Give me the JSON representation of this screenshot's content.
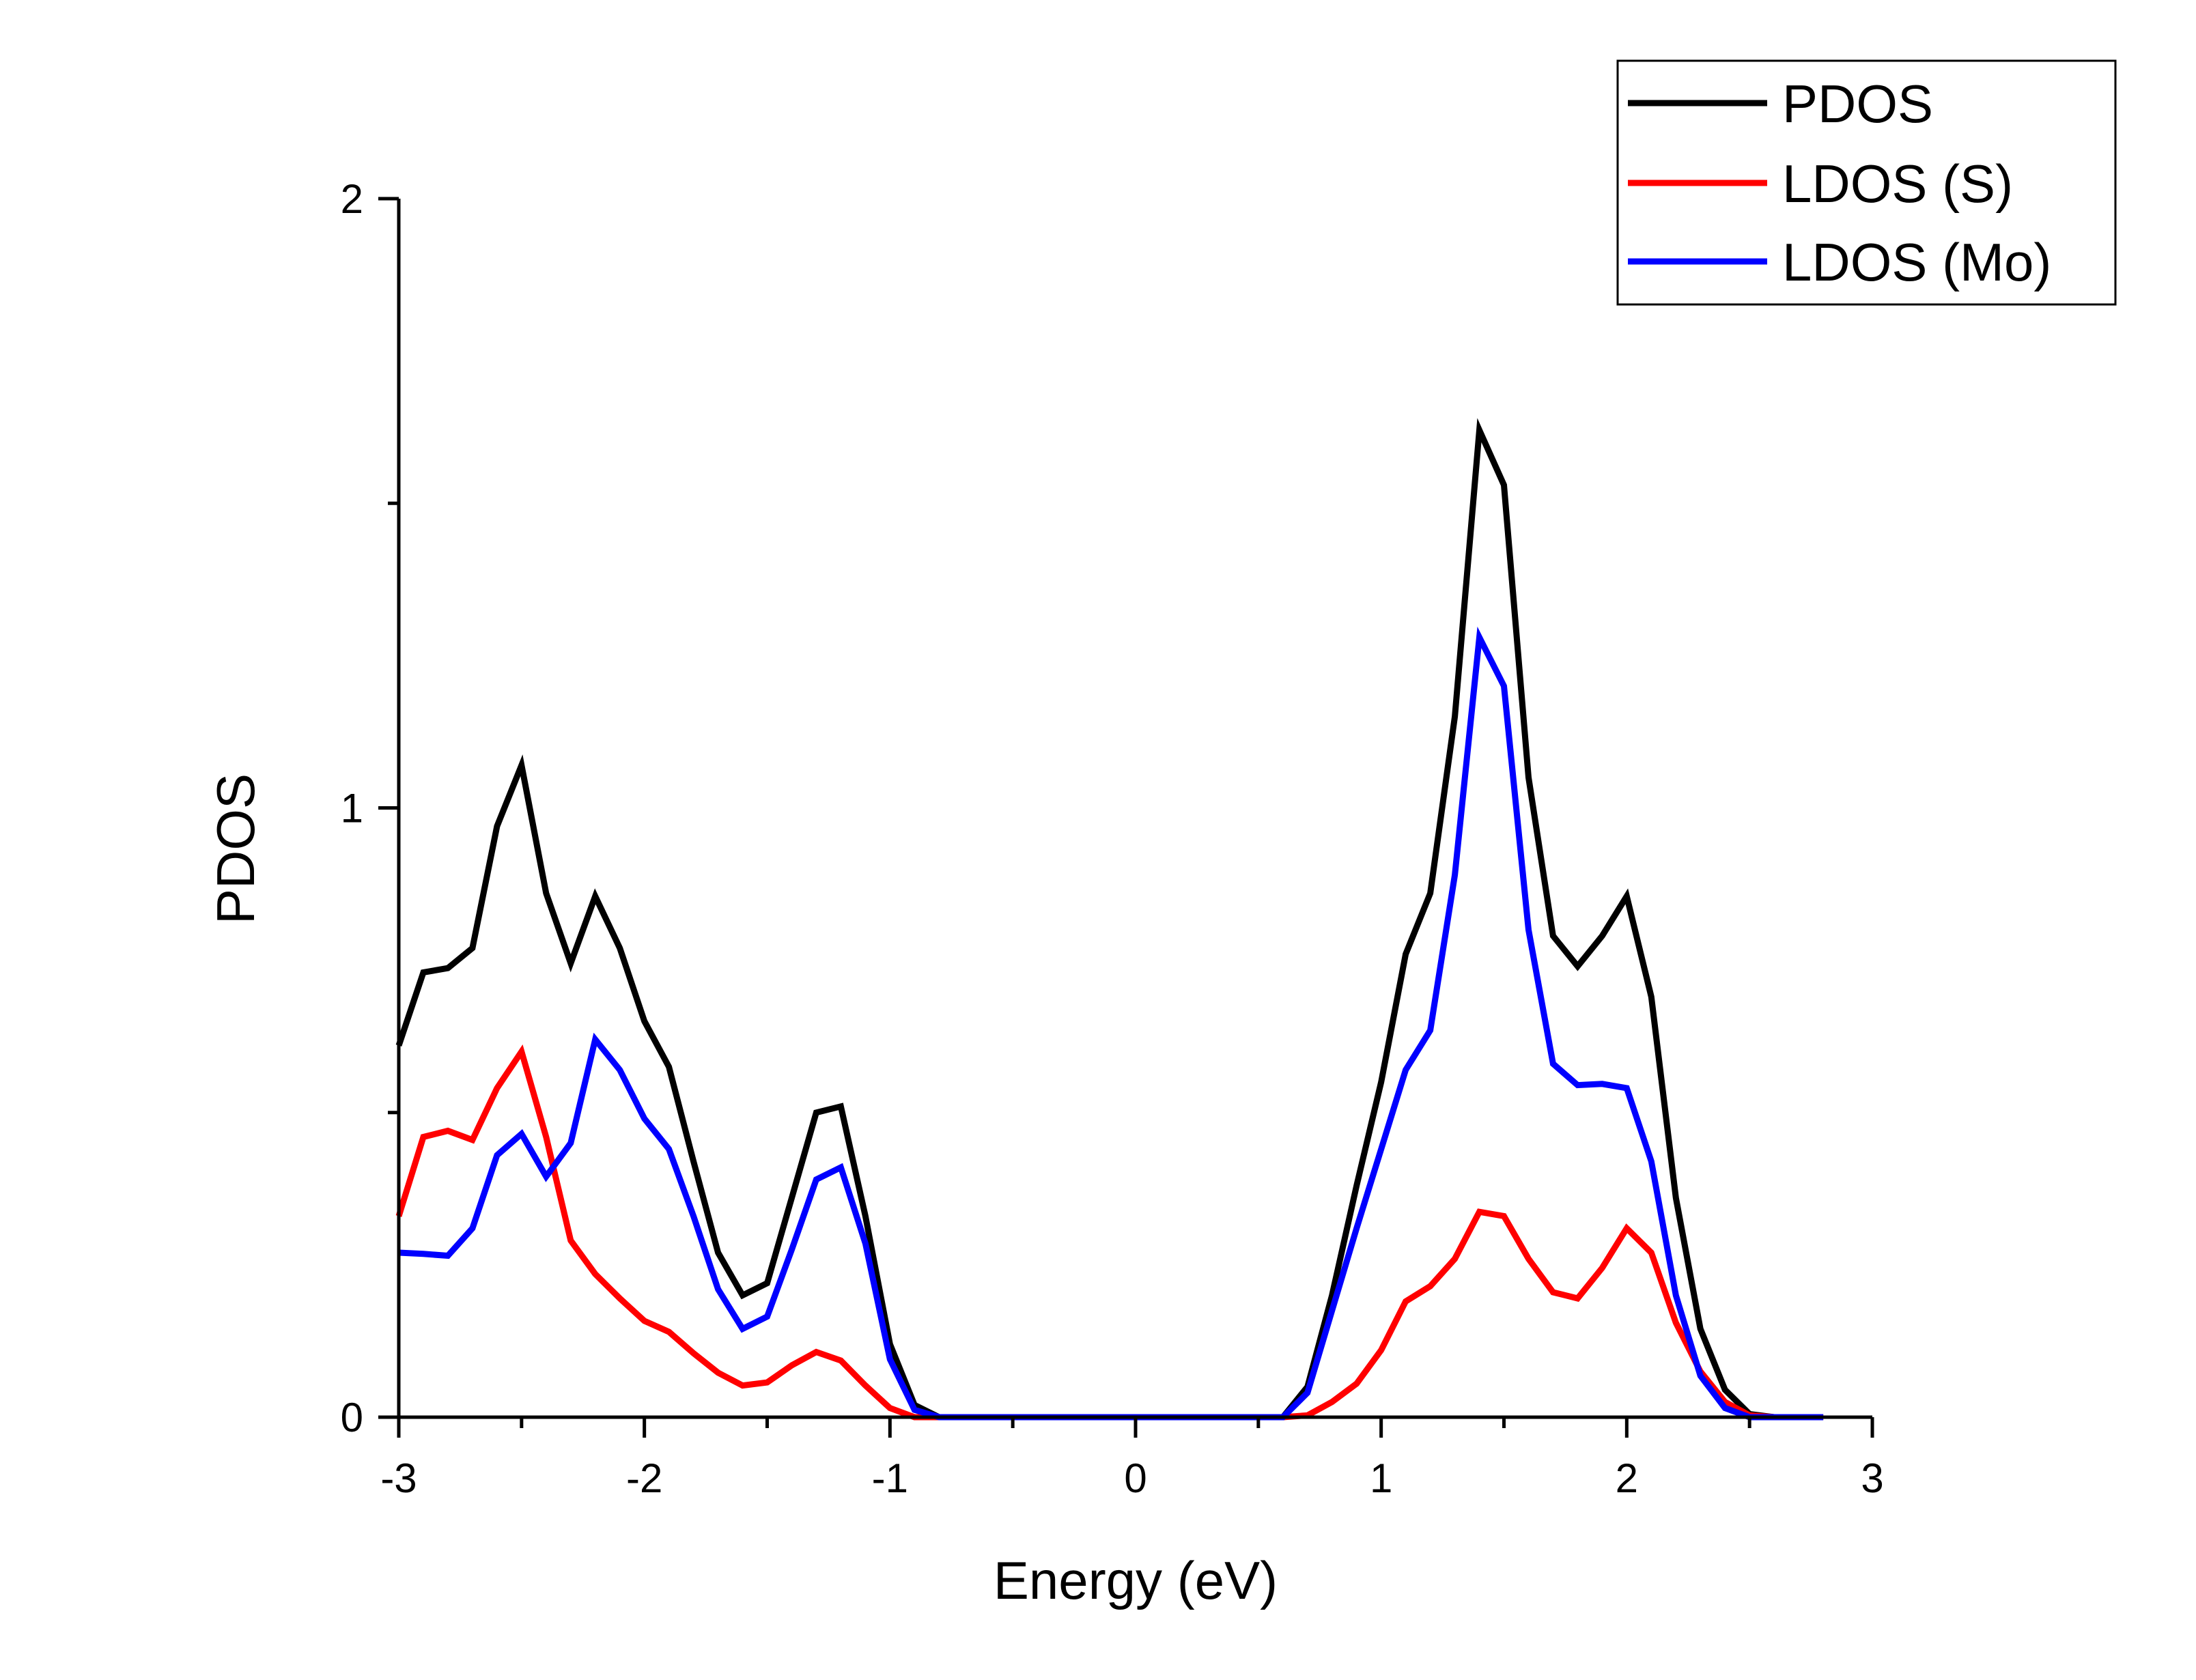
{
  "chart_data": {
    "type": "line",
    "xlabel": "Energy (eV)",
    "ylabel": "PDOS",
    "xlim": [
      -3,
      3
    ],
    "ylim": [
      0,
      2
    ],
    "x_ticks": [
      -3,
      -2,
      -1,
      0,
      1,
      2,
      3
    ],
    "x_tick_labels": [
      "-3",
      "-2",
      "-1",
      "0",
      "1",
      "2",
      "3"
    ],
    "y_ticks": [
      0,
      1,
      2
    ],
    "y_tick_labels": [
      "0",
      "1",
      "2"
    ],
    "x_minor_ticks": [
      -2.5,
      -1.5,
      -0.5,
      0.5,
      1.5,
      2.5
    ],
    "y_minor_ticks": [
      0.5,
      1.5
    ],
    "grid": false,
    "legend_position": "top-right",
    "x": [
      -3.0,
      -2.9,
      -2.8,
      -2.7,
      -2.6,
      -2.5,
      -2.4,
      -2.3,
      -2.2,
      -2.1,
      -2.0,
      -1.9,
      -1.8,
      -1.7,
      -1.6,
      -1.5,
      -1.4,
      -1.3,
      -1.2,
      -1.1,
      -1.0,
      -0.9,
      -0.8,
      -0.7,
      -0.6,
      -0.5,
      -0.4,
      -0.3,
      -0.2,
      -0.1,
      0.0,
      0.1,
      0.2,
      0.3,
      0.4,
      0.5,
      0.6,
      0.7,
      0.8,
      0.9,
      1.0,
      1.1,
      1.2,
      1.3,
      1.4,
      1.5,
      1.6,
      1.7,
      1.8,
      1.9,
      2.0,
      2.1,
      2.2,
      2.3,
      2.4,
      2.5,
      2.6,
      2.7,
      2.8
    ],
    "series": [
      {
        "name": "PDOS",
        "color": "#000000",
        "values": [
          0.61,
          0.73,
          0.737,
          0.77,
          0.97,
          1.07,
          0.86,
          0.745,
          0.855,
          0.77,
          0.65,
          0.575,
          0.42,
          0.27,
          0.2,
          0.22,
          0.36,
          0.5,
          0.51,
          0.33,
          0.12,
          0.02,
          0.0,
          0.0,
          0.0,
          0.0,
          0.0,
          0.0,
          0.0,
          0.0,
          0.0,
          0.0,
          0.0,
          0.0,
          0.0,
          0.0,
          0.0,
          0.05,
          0.2,
          0.38,
          0.55,
          0.76,
          0.86,
          1.15,
          1.62,
          1.53,
          1.05,
          0.79,
          0.74,
          0.79,
          0.855,
          0.69,
          0.36,
          0.145,
          0.045,
          0.005,
          0.0,
          0.0,
          0.0
        ]
      },
      {
        "name": "LDOS (S)",
        "color": "#ff0000",
        "values": [
          0.33,
          0.46,
          0.47,
          0.455,
          0.54,
          0.6,
          0.46,
          0.29,
          0.235,
          0.195,
          0.158,
          0.14,
          0.105,
          0.073,
          0.052,
          0.057,
          0.085,
          0.107,
          0.093,
          0.052,
          0.015,
          0.0,
          0.0,
          0.0,
          0.0,
          0.0,
          0.0,
          0.0,
          0.0,
          0.0,
          0.0,
          0.0,
          0.0,
          0.0,
          0.0,
          0.0,
          0.0,
          0.003,
          0.025,
          0.055,
          0.11,
          0.19,
          0.215,
          0.26,
          0.337,
          0.33,
          0.26,
          0.205,
          0.195,
          0.245,
          0.31,
          0.27,
          0.155,
          0.075,
          0.025,
          0.003,
          0.0,
          0.0,
          0.0
        ]
      },
      {
        "name": "LDOS (Mo)",
        "color": "#0000ff",
        "values": [
          0.27,
          0.268,
          0.265,
          0.31,
          0.43,
          0.465,
          0.395,
          0.45,
          0.62,
          0.57,
          0.49,
          0.44,
          0.33,
          0.21,
          0.145,
          0.165,
          0.275,
          0.39,
          0.41,
          0.285,
          0.095,
          0.012,
          0.0,
          0.0,
          0.0,
          0.0,
          0.0,
          0.0,
          0.0,
          0.0,
          0.0,
          0.0,
          0.0,
          0.0,
          0.0,
          0.0,
          0.0,
          0.04,
          0.175,
          0.31,
          0.44,
          0.57,
          0.635,
          0.89,
          1.28,
          1.2,
          0.8,
          0.58,
          0.545,
          0.547,
          0.54,
          0.42,
          0.2,
          0.068,
          0.015,
          0.0,
          0.0,
          0.0,
          0.0
        ]
      }
    ]
  }
}
